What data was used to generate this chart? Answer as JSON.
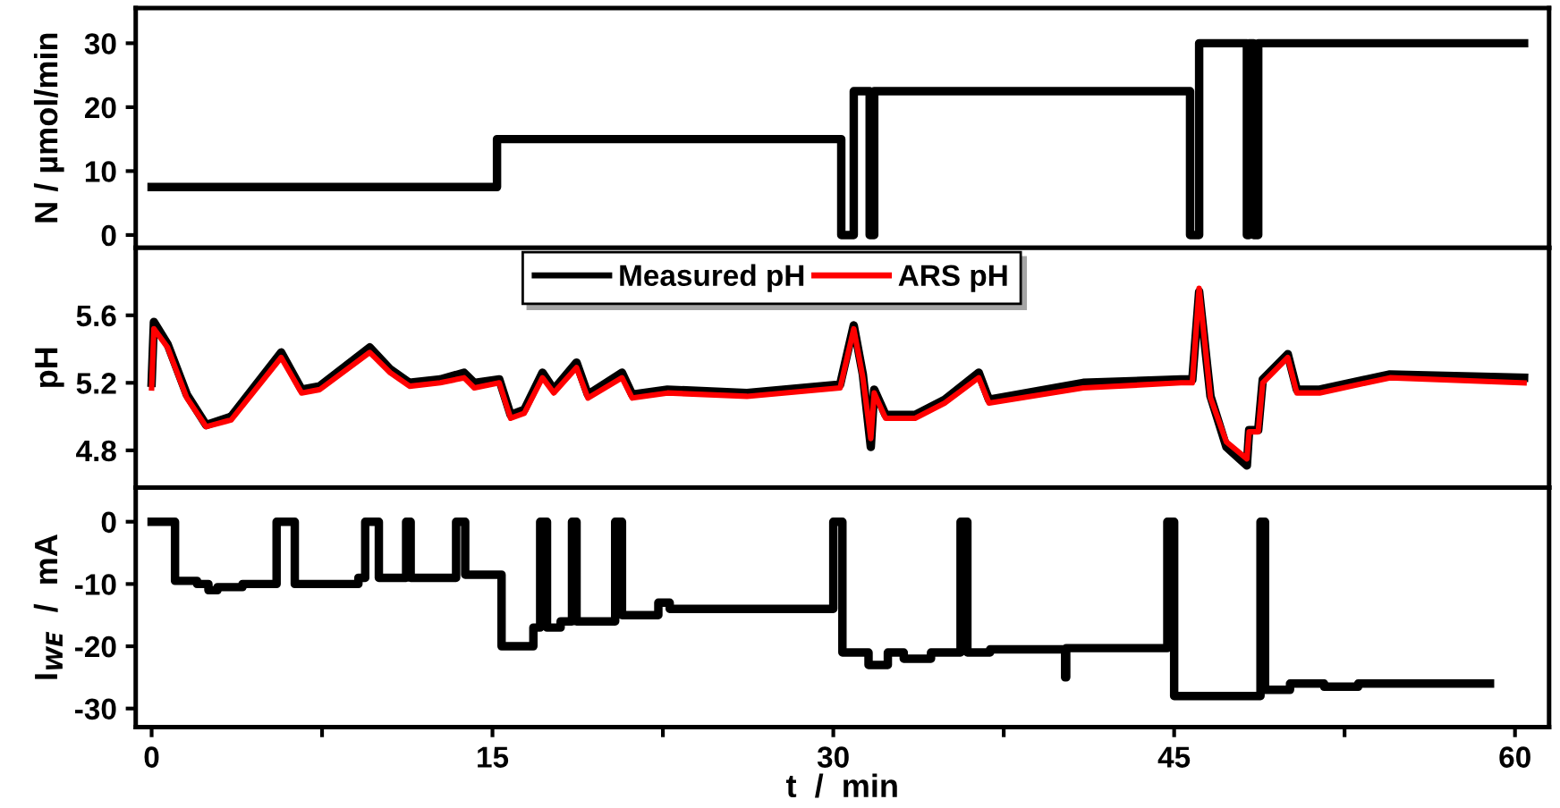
{
  "chart_data": [
    {
      "type": "step",
      "ylabel": "N / µmol/min",
      "xlim": [
        -0.7,
        61.5
      ],
      "ylim": [
        -2,
        35.5
      ],
      "yticks": [
        0,
        10,
        20,
        30
      ],
      "xticks": [
        {
          "value": 0,
          "label": null
        },
        {
          "value": 7.5,
          "label": null
        },
        {
          "value": 15,
          "label": null
        },
        {
          "value": 22.5,
          "label": null
        },
        {
          "value": 30,
          "label": null
        },
        {
          "value": 37.5,
          "label": null
        },
        {
          "value": 45,
          "label": null
        },
        {
          "value": 52.5,
          "label": null
        },
        {
          "value": 60,
          "label": null
        }
      ],
      "tick_labels": "y",
      "x": [
        0,
        15.2,
        30.35,
        30.9,
        31.6,
        31.8,
        45.7,
        46.1,
        48.2,
        48.3,
        48.5,
        48.7,
        60.4
      ],
      "series": [
        {
          "color": "#000000",
          "values": [
            7.5,
            15,
            0,
            22.5,
            0,
            22.5,
            0,
            30,
            0,
            30,
            0,
            30,
            30
          ]
        }
      ]
    },
    {
      "type": "line",
      "ylabel": "pH",
      "xlim": [
        -0.7,
        61.5
      ],
      "ylim": [
        4.58,
        6.0
      ],
      "yticks": [
        4.8,
        5.2,
        5.6
      ],
      "xticks": [
        {
          "value": 0,
          "label": null
        },
        {
          "value": 7.5,
          "label": null
        },
        {
          "value": 15,
          "label": null
        },
        {
          "value": 22.5,
          "label": null
        },
        {
          "value": 30,
          "label": null
        },
        {
          "value": 37.5,
          "label": null
        },
        {
          "value": 45,
          "label": null
        },
        {
          "value": 52.5,
          "label": null
        },
        {
          "value": 60,
          "label": null
        }
      ],
      "tick_labels": "y",
      "legend": "top",
      "x": [
        0,
        0.1,
        0.7,
        1.55,
        2.4,
        3.5,
        5.7,
        6.6,
        7.4,
        9.6,
        10.5,
        11.35,
        12.7,
        13.75,
        14.2,
        15.3,
        15.8,
        16.4,
        17.2,
        17.7,
        18.7,
        19.2,
        20.7,
        21.15,
        22.7,
        26.2,
        30.3,
        30.9,
        31.3,
        31.65,
        31.8,
        32.3,
        33.6,
        34.9,
        36.4,
        36.85,
        41.0,
        45.3,
        45.8,
        46.1,
        46.6,
        47.3,
        48.2,
        48.3,
        48.7,
        48.9,
        50.0,
        50.4,
        51.4,
        54.5,
        60.4
      ],
      "series": [
        {
          "name": "Measured pH",
          "color": "#000000",
          "values": [
            5.2,
            5.56,
            5.43,
            5.13,
            4.95,
            5.0,
            5.38,
            5.16,
            5.18,
            5.41,
            5.28,
            5.2,
            5.22,
            5.26,
            5.2,
            5.22,
            5.01,
            5.04,
            5.26,
            5.16,
            5.32,
            5.13,
            5.26,
            5.13,
            5.16,
            5.14,
            5.19,
            5.54,
            5.25,
            4.82,
            5.16,
            5.01,
            5.01,
            5.1,
            5.26,
            5.1,
            5.2,
            5.22,
            5.22,
            5.74,
            5.12,
            4.82,
            4.71,
            4.92,
            4.92,
            5.22,
            5.37,
            5.16,
            5.16,
            5.25,
            5.23
          ]
        },
        {
          "name": "ARS pH",
          "color": "#ff0000",
          "values": [
            5.17,
            5.52,
            5.41,
            5.11,
            4.94,
            4.98,
            5.35,
            5.14,
            5.16,
            5.38,
            5.26,
            5.18,
            5.2,
            5.23,
            5.17,
            5.2,
            4.99,
            5.02,
            5.23,
            5.14,
            5.29,
            5.11,
            5.23,
            5.11,
            5.14,
            5.12,
            5.17,
            5.52,
            5.23,
            4.87,
            5.14,
            4.99,
            4.99,
            5.08,
            5.23,
            5.08,
            5.17,
            5.2,
            5.2,
            5.76,
            5.11,
            4.85,
            4.75,
            4.91,
            4.91,
            5.2,
            5.35,
            5.14,
            5.14,
            5.23,
            5.2
          ]
        }
      ]
    },
    {
      "type": "step",
      "ylabel": "I$_{WE}$  /  mA",
      "xlabel": "t  /  min",
      "xlim": [
        -0.7,
        61.5
      ],
      "ylim": [
        -33,
        5.5
      ],
      "yticks": [
        0,
        -10,
        -20,
        -30
      ],
      "xticks": [
        0,
        {
          "value": 7.5,
          "label": null
        },
        15,
        {
          "value": 22.5,
          "label": null
        },
        30,
        {
          "value": 37.5,
          "label": null
        },
        45,
        {
          "value": 52.5,
          "label": null
        },
        60
      ],
      "x": [
        0,
        1.03,
        2.0,
        2.5,
        2.9,
        4.0,
        5.5,
        6.3,
        9.1,
        9.4,
        10.0,
        11.2,
        11.4,
        13.4,
        13.8,
        15.4,
        16.8,
        17.1,
        17.4,
        18.0,
        18.5,
        18.7,
        20.4,
        20.7,
        22.3,
        22.8,
        30.0,
        30.4,
        31.55,
        32.4,
        33.1,
        34.3,
        35.6,
        35.9,
        36.9,
        40.2,
        40.25,
        44.7,
        45.0,
        48.8,
        49.0,
        50.1,
        51.6,
        53.1,
        58.9
      ],
      "series": [
        {
          "color": "#000000",
          "values": [
            0,
            -9.5,
            -10,
            -11,
            -10.5,
            -10,
            0,
            -10,
            -9,
            0,
            -9,
            0,
            -9,
            0,
            -8.5,
            -20,
            -17,
            0,
            -17,
            -16,
            0,
            -16,
            0,
            -15,
            -13,
            -14,
            0,
            -21,
            -23,
            -21,
            -22,
            -21,
            0,
            -21,
            -20.5,
            -25,
            -20.3,
            0,
            -28,
            0,
            -27,
            -26,
            -26.5,
            -26,
            -26
          ]
        }
      ]
    }
  ]
}
